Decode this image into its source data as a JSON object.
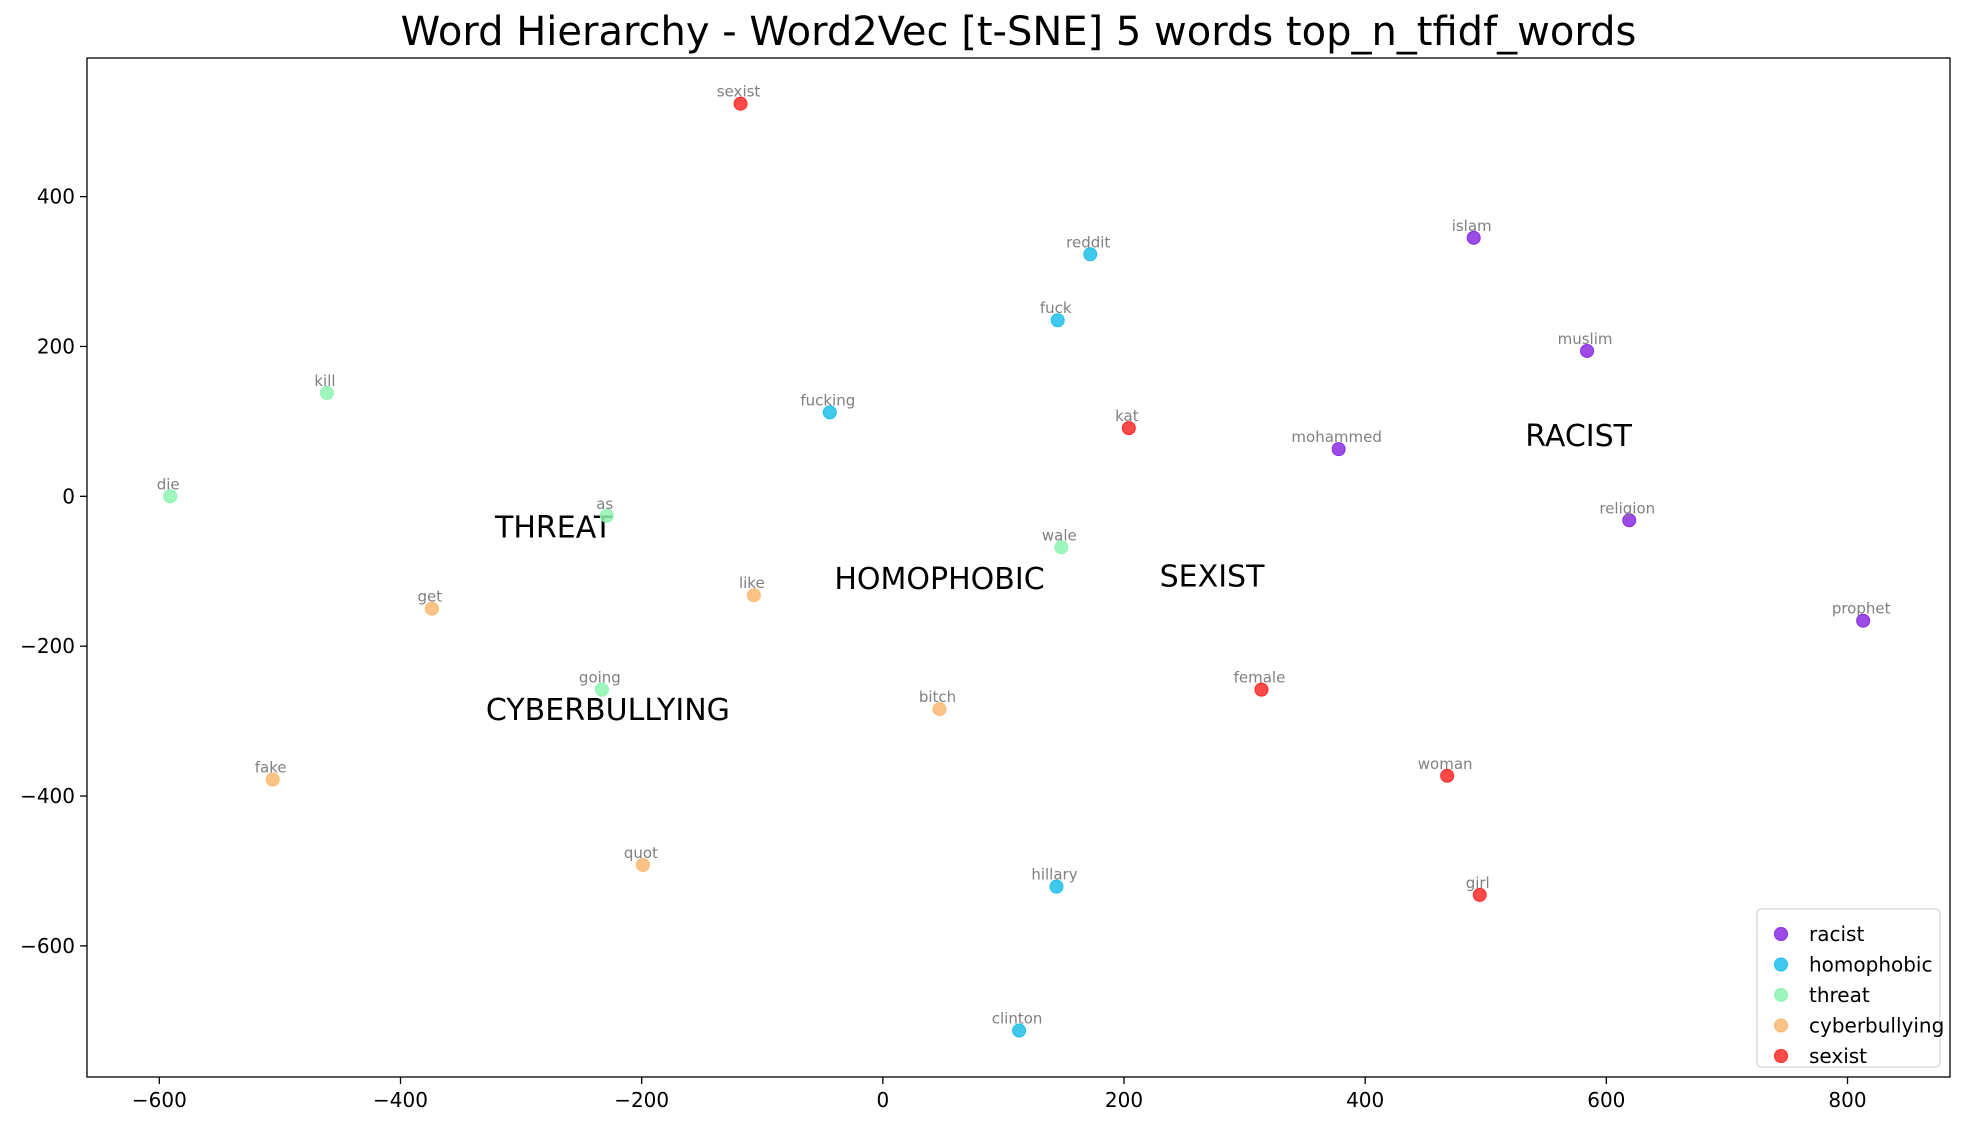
{
  "chart_data": {
    "type": "scatter",
    "title": "Word Hierarchy - Word2Vec [t-SNE] 5 words top_n_tfidf_words",
    "xlabel": "",
    "ylabel": "",
    "xlim": [
      -660,
      885
    ],
    "ylim": [
      -775,
      585
    ],
    "xticks": [
      -600,
      -400,
      -200,
      0,
      200,
      400,
      600,
      800
    ],
    "xtick_labels": [
      "−600",
      "−400",
      "−200",
      "0",
      "200",
      "400",
      "600",
      "800"
    ],
    "yticks": [
      -600,
      -400,
      -200,
      0,
      200,
      400
    ],
    "ytick_labels": [
      "−600",
      "−400",
      "−200",
      "0",
      "200",
      "400"
    ],
    "grid": false,
    "legend_position": "lower-right",
    "series": [
      {
        "name": "racist",
        "color": "#8a2be2",
        "points": [
          {
            "label": "islam",
            "x": 490,
            "y": 345
          },
          {
            "label": "muslim",
            "x": 584,
            "y": 194
          },
          {
            "label": "mohammed",
            "x": 378,
            "y": 63
          },
          {
            "label": "religion",
            "x": 619,
            "y": -32
          },
          {
            "label": "prophet",
            "x": 813,
            "y": -166
          }
        ]
      },
      {
        "name": "homophobic",
        "color": "#1ec0ea",
        "points": [
          {
            "label": "reddit",
            "x": 172,
            "y": 323
          },
          {
            "label": "fuck",
            "x": 145,
            "y": 235
          },
          {
            "label": "fucking",
            "x": -44,
            "y": 112
          },
          {
            "label": "hillary",
            "x": 144,
            "y": -521
          },
          {
            "label": "clinton",
            "x": 113,
            "y": -713
          }
        ]
      },
      {
        "name": "threat",
        "color": "#8ef5b2",
        "points": [
          {
            "label": "kill",
            "x": -461,
            "y": 138
          },
          {
            "label": "die",
            "x": -591,
            "y": 0
          },
          {
            "label": "as",
            "x": -229,
            "y": -26
          },
          {
            "label": "wale",
            "x": 148,
            "y": -68
          },
          {
            "label": "going",
            "x": -233,
            "y": -258
          }
        ]
      },
      {
        "name": "cyberbullying",
        "color": "#fab970",
        "points": [
          {
            "label": "get",
            "x": -374,
            "y": -150
          },
          {
            "label": "like",
            "x": -107,
            "y": -132
          },
          {
            "label": "bitch",
            "x": 47,
            "y": -284
          },
          {
            "label": "fake",
            "x": -506,
            "y": -378
          },
          {
            "label": "quot",
            "x": -199,
            "y": -492
          }
        ]
      },
      {
        "name": "sexist",
        "color": "#ff2a2a",
        "points": [
          {
            "label": "sexist",
            "x": -118,
            "y": 524
          },
          {
            "label": "kat",
            "x": 204,
            "y": 91
          },
          {
            "label": "female",
            "x": 314,
            "y": -258
          },
          {
            "label": "woman",
            "x": 468,
            "y": -373
          },
          {
            "label": "girl",
            "x": 495,
            "y": -532
          }
        ]
      }
    ],
    "cluster_labels": [
      {
        "text": "RACIST",
        "x": 577,
        "y": 82
      },
      {
        "text": "THREAT",
        "x": -273,
        "y": -40
      },
      {
        "text": "HOMOPHOBIC",
        "x": 47,
        "y": -109
      },
      {
        "text": "SEXIST",
        "x": 273,
        "y": -106
      },
      {
        "text": "CYBERBULLYING",
        "x": -228,
        "y": -284
      }
    ]
  }
}
